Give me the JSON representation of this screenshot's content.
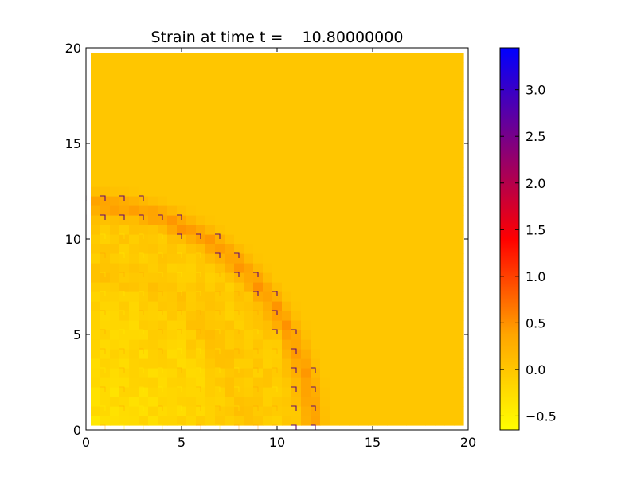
{
  "chart_data": {
    "type": "heatmap",
    "title": "Strain at time t =    10.80000000",
    "xlabel": "",
    "ylabel": "",
    "xlim": [
      0,
      20
    ],
    "ylim": [
      0,
      20
    ],
    "x_ticks": [
      0,
      5,
      10,
      15,
      20
    ],
    "y_ticks": [
      0,
      5,
      10,
      15,
      20
    ],
    "x_tick_labels": [
      "0",
      "5",
      "10",
      "15",
      "20"
    ],
    "y_tick_labels": [
      "0",
      "5",
      "10",
      "15",
      "20"
    ],
    "grid": false,
    "field": {
      "domain_x": [
        0.25,
        19.75
      ],
      "domain_y": [
        0.25,
        19.75
      ],
      "background_value": 0.0,
      "wave_front_radius": 12.0,
      "wave_front_peak_value": 0.45,
      "interior_min_value": -0.35,
      "grid_artifact_spacing": 1.0
    },
    "colorbar": {
      "min": -0.65,
      "max": 3.45,
      "ticks": [
        -0.5,
        0.0,
        0.5,
        1.0,
        1.5,
        2.0,
        2.5,
        3.0
      ],
      "tick_labels": [
        "−0.5",
        "0.0",
        "0.5",
        "1.0",
        "1.5",
        "2.0",
        "2.5",
        "3.0"
      ],
      "colormap": [
        "#ffff00",
        "#ffa500",
        "#ff0000",
        "#800080",
        "#0000ff"
      ],
      "placement": "right"
    }
  }
}
